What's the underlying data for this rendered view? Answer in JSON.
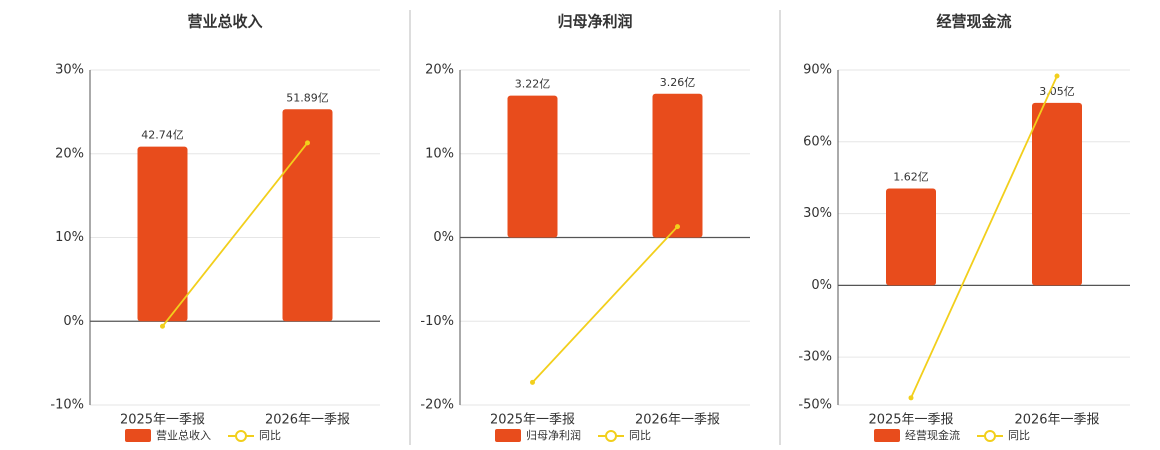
{
  "chart_data": [
    {
      "type": "bar",
      "title": "营业总收入",
      "categories": [
        "2025年一季报",
        "2026年一季报"
      ],
      "series": [
        {
          "name": "营业总收入",
          "color": "#e84c1c",
          "values": [
            42.74,
            51.89
          ],
          "value_labels": [
            "42.74亿",
            "51.89亿"
          ],
          "axis": "y2"
        },
        {
          "name": "同比",
          "color": "#f2cf1c",
          "values": [
            -0.6,
            21.3
          ]
        }
      ],
      "ylim": [
        -10,
        30
      ],
      "yticks": [
        {
          "value": -10,
          "label": "-10%"
        },
        {
          "value": 0,
          "label": "0%"
        },
        {
          "value": 10,
          "label": "10%"
        },
        {
          "value": 20,
          "label": "20%"
        },
        {
          "value": 30,
          "label": "30%"
        }
      ],
      "y2lim": [
        -20.5,
        61.5
      ],
      "grid": true
    },
    {
      "type": "bar",
      "title": "归母净利润",
      "categories": [
        "2025年一季报",
        "2026年一季报"
      ],
      "series": [
        {
          "name": "归母净利润",
          "color": "#e84c1c",
          "values": [
            3.22,
            3.26
          ],
          "value_labels": [
            "3.22亿",
            "3.26亿"
          ],
          "axis": "y2"
        },
        {
          "name": "同比",
          "color": "#f2cf1c",
          "values": [
            -17.3,
            1.3
          ]
        }
      ],
      "ylim": [
        -20,
        20
      ],
      "yticks": [
        {
          "value": -20,
          "label": "-20%"
        },
        {
          "value": -10,
          "label": "-10%"
        },
        {
          "value": 0,
          "label": "0%"
        },
        {
          "value": 10,
          "label": "10%"
        },
        {
          "value": 20,
          "label": "20%"
        }
      ],
      "y2lim": [
        -3.8,
        3.8
      ],
      "grid": true
    },
    {
      "type": "bar",
      "title": "经营现金流",
      "categories": [
        "2025年一季报",
        "2026年一季报"
      ],
      "series": [
        {
          "name": "经营现金流",
          "color": "#e84c1c",
          "values": [
            1.62,
            3.05
          ],
          "value_labels": [
            "1.62亿",
            "3.05亿"
          ],
          "axis": "y2"
        },
        {
          "name": "同比",
          "color": "#f2cf1c",
          "values": [
            -47,
            87.5
          ]
        }
      ],
      "ylim": [
        -50,
        90
      ],
      "yticks": [
        {
          "value": -50,
          "label": "-50%"
        },
        {
          "value": -30,
          "label": "-30%"
        },
        {
          "value": 0,
          "label": "0%"
        },
        {
          "value": 30,
          "label": "30%"
        },
        {
          "value": 60,
          "label": "60%"
        },
        {
          "value": 90,
          "label": "90%"
        }
      ],
      "y2lim": [
        -2,
        3.6
      ],
      "grid": true
    }
  ]
}
